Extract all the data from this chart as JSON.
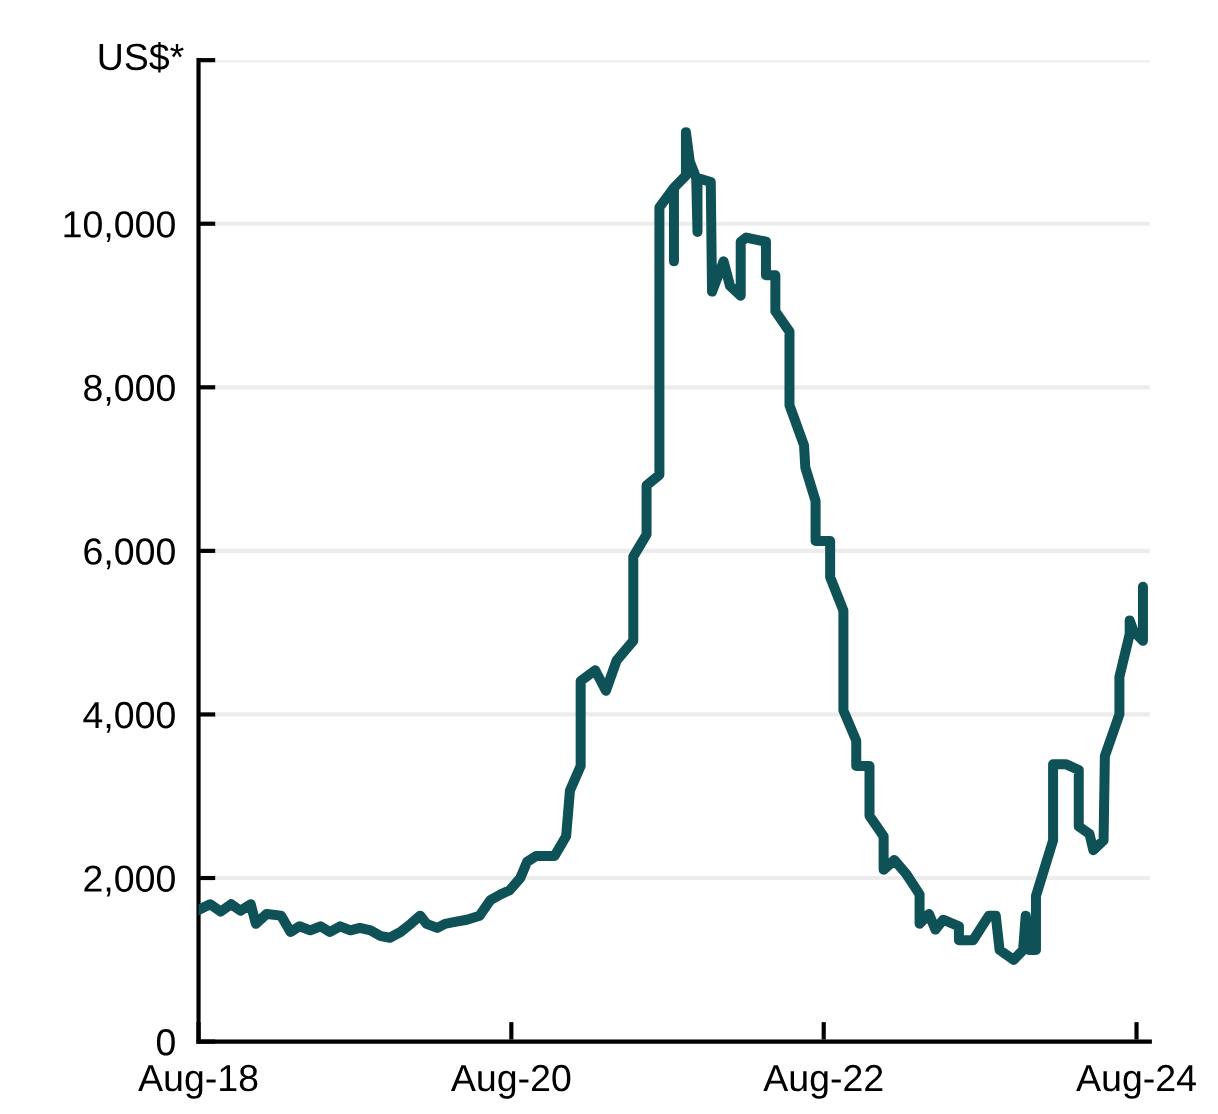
{
  "chart_data": {
    "type": "line",
    "ylabel": "US$*",
    "x": [
      "2018-08-01",
      "2018-08-28",
      "2018-09-22",
      "2018-10-16",
      "2018-11-07",
      "2018-12-01",
      "2018-12-13",
      "2019-01-07",
      "2019-02-10",
      "2019-03-04",
      "2019-03-25",
      "2019-04-19",
      "2019-05-13",
      "2019-06-04",
      "2019-06-28",
      "2019-07-22",
      "2019-08-13",
      "2019-09-07",
      "2019-10-01",
      "2019-10-22",
      "2019-11-16",
      "2019-12-10",
      "2020-01-01",
      "2020-01-16",
      "2020-02-10",
      "2020-02-28",
      "2020-03-19",
      "2020-04-19",
      "2020-05-19",
      "2020-06-13",
      "2020-07-07",
      "2020-07-28",
      "2020-08-22",
      "2020-09-07",
      "2020-09-28",
      "2020-11-10",
      "2020-12-07",
      "2020-12-16",
      "2021-01-10",
      "2021-01-10",
      "2021-02-13",
      "2021-03-10",
      "2021-04-04",
      "2021-05-13",
      "2021-05-13",
      "2021-06-13",
      "2021-06-13",
      "2021-07-13",
      "2021-07-13",
      "2021-08-16",
      "2021-08-16",
      "2021-08-16",
      "2021-09-13",
      "2021-09-13",
      "2021-09-22",
      "2021-10-07",
      "2021-10-10",
      "2021-10-10",
      "2021-11-10",
      "2021-11-13",
      "2021-12-10",
      "2021-12-25",
      "2022-01-19",
      "2022-01-19",
      "2022-02-01",
      "2022-03-19",
      "2022-03-19",
      "2022-04-10",
      "2022-04-10",
      "2022-05-13",
      "2022-05-13",
      "2022-05-13",
      "2022-06-16",
      "2022-06-19",
      "2022-07-13",
      "2022-07-13",
      "2022-08-16",
      "2022-08-16",
      "2022-09-16",
      "2022-09-16",
      "2022-10-16",
      "2022-10-16",
      "2022-11-16",
      "2022-11-16",
      "2022-12-19",
      "2022-12-19",
      "2023-01-13",
      "2023-02-10",
      "2023-03-13",
      "2023-03-13",
      "2023-04-04",
      "2023-04-19",
      "2023-05-07",
      "2023-06-13",
      "2023-06-13",
      "2023-07-16",
      "2023-08-22",
      "2023-09-07",
      "2023-09-16",
      "2023-10-19",
      "2023-11-10",
      "2023-11-16",
      "2023-11-25",
      "2023-12-10",
      "2023-12-10",
      "2024-01-19",
      "2024-01-19",
      "2024-02-19",
      "2024-03-19",
      "2024-03-19",
      "2024-04-13",
      "2024-04-22",
      "2024-05-16",
      "2024-05-19",
      "2024-06-22",
      "2024-06-22",
      "2024-07-16",
      "2024-07-16",
      "2024-07-25",
      "2024-08-16",
      "2024-08-16"
    ],
    "series": [
      {
        "color": "#0e5257",
        "values": [
          1610,
          1680,
          1590,
          1680,
          1600,
          1680,
          1440,
          1560,
          1540,
          1340,
          1410,
          1360,
          1410,
          1340,
          1410,
          1360,
          1390,
          1360,
          1290,
          1270,
          1340,
          1440,
          1540,
          1440,
          1390,
          1440,
          1460,
          1490,
          1540,
          1730,
          1800,
          1850,
          2000,
          2200,
          2270,
          2270,
          2510,
          3070,
          3370,
          4410,
          4540,
          4290,
          4660,
          4900,
          5930,
          6200,
          6800,
          6930,
          10200,
          10440,
          9540,
          10440,
          10590,
          11120,
          10760,
          10560,
          9900,
          10560,
          10510,
          9170,
          9540,
          9240,
          9120,
          9780,
          9830,
          9780,
          9370,
          9370,
          8930,
          8680,
          8240,
          7780,
          7290,
          7020,
          6610,
          6120,
          6120,
          5680,
          5270,
          4050,
          3680,
          3370,
          3370,
          2760,
          2510,
          2100,
          2220,
          2050,
          1800,
          1440,
          1560,
          1370,
          1490,
          1410,
          1240,
          1240,
          1540,
          1540,
          1120,
          1000,
          1120,
          1540,
          1120,
          1120,
          1780,
          2460,
          3390,
          3390,
          3320,
          2630,
          2540,
          2340,
          2460,
          3490,
          4000,
          4460,
          4980,
          5150,
          5020,
          4900,
          5560
        ]
      }
    ],
    "xlim": [
      "2018-08-01",
      "2024-09-01"
    ],
    "xticks": [
      {
        "value": "2018-08-01",
        "label": "Aug-18"
      },
      {
        "value": "2020-08-01",
        "label": "Aug-20"
      },
      {
        "value": "2022-08-01",
        "label": "Aug-22"
      },
      {
        "value": "2024-08-01",
        "label": "Aug-24"
      }
    ],
    "ylim": [
      0,
      12000
    ],
    "yticks": [
      {
        "value": 0,
        "label": "0"
      },
      {
        "value": 2000,
        "label": "2,000"
      },
      {
        "value": 4000,
        "label": "4,000"
      },
      {
        "value": 6000,
        "label": "6,000"
      },
      {
        "value": 8000,
        "label": "8,000"
      },
      {
        "value": 10000,
        "label": "10,000"
      },
      {
        "value": 12000,
        "label": null
      }
    ],
    "grid": "y",
    "line_style": "solid"
  }
}
